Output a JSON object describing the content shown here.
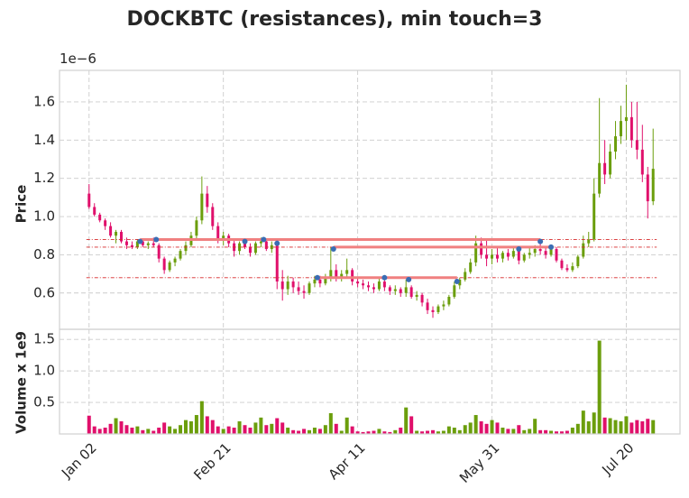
{
  "chart_data": {
    "type": "candlestick",
    "title": "DOCKBTC (resistances), min touch=3",
    "ylabel": "Price",
    "y_offset_label": "1e−6",
    "volume_ylabel": "Volume x 1e9",
    "x": [
      "Jan 02",
      "Jan 04",
      "Jan 06",
      "Jan 08",
      "Jan 10",
      "Jan 12",
      "Jan 14",
      "Jan 16",
      "Jan 18",
      "Jan 20",
      "Jan 22",
      "Jan 24",
      "Jan 26",
      "Jan 28",
      "Jan 30",
      "Feb 01",
      "Feb 03",
      "Feb 05",
      "Feb 07",
      "Feb 09",
      "Feb 11",
      "Feb 13",
      "Feb 15",
      "Feb 17",
      "Feb 19",
      "Feb 21",
      "Feb 23",
      "Feb 25",
      "Feb 27",
      "Feb 29",
      "Mar 02",
      "Mar 04",
      "Mar 06",
      "Mar 08",
      "Mar 10",
      "Mar 12",
      "Mar 14",
      "Mar 16",
      "Mar 18",
      "Mar 20",
      "Mar 22",
      "Mar 24",
      "Mar 26",
      "Mar 28",
      "Mar 30",
      "Apr 01",
      "Apr 03",
      "Apr 05",
      "Apr 07",
      "Apr 09",
      "Apr 11",
      "Apr 13",
      "Apr 15",
      "Apr 17",
      "Apr 19",
      "Apr 21",
      "Apr 23",
      "Apr 25",
      "Apr 27",
      "Apr 29",
      "May 01",
      "May 03",
      "May 05",
      "May 07",
      "May 09",
      "May 11",
      "May 13",
      "May 15",
      "May 17",
      "May 19",
      "May 21",
      "May 23",
      "May 25",
      "May 27",
      "May 29",
      "May 31",
      "Jun 02",
      "Jun 04",
      "Jun 06",
      "Jun 08",
      "Jun 10",
      "Jun 12",
      "Jun 14",
      "Jun 16",
      "Jun 18",
      "Jun 20",
      "Jun 22",
      "Jun 24",
      "Jun 26",
      "Jun 28",
      "Jun 30",
      "Jul 02",
      "Jul 04",
      "Jul 06",
      "Jul 08",
      "Jul 10",
      "Jul 12",
      "Jul 14",
      "Jul 16",
      "Jul 18",
      "Jul 20",
      "Jul 22",
      "Jul 24",
      "Jul 26",
      "Jul 28",
      "Jul 30"
    ],
    "open": [
      1.12,
      1.05,
      1.01,
      0.98,
      0.95,
      0.9,
      0.92,
      0.87,
      0.85,
      0.84,
      0.87,
      0.85,
      0.86,
      0.85,
      0.78,
      0.72,
      0.76,
      0.78,
      0.82,
      0.85,
      0.9,
      0.98,
      1.12,
      1.05,
      0.95,
      0.88,
      0.9,
      0.86,
      0.82,
      0.86,
      0.84,
      0.81,
      0.86,
      0.87,
      0.83,
      0.85,
      0.66,
      0.62,
      0.66,
      0.63,
      0.61,
      0.6,
      0.65,
      0.67,
      0.65,
      0.68,
      0.72,
      0.68,
      0.7,
      0.72,
      0.66,
      0.65,
      0.64,
      0.63,
      0.62,
      0.66,
      0.63,
      0.61,
      0.62,
      0.6,
      0.63,
      0.58,
      0.59,
      0.55,
      0.51,
      0.5,
      0.53,
      0.54,
      0.58,
      0.64,
      0.67,
      0.71,
      0.76,
      0.86,
      0.8,
      0.78,
      0.8,
      0.78,
      0.81,
      0.79,
      0.82,
      0.77,
      0.8,
      0.81,
      0.83,
      0.82,
      0.8,
      0.83,
      0.77,
      0.73,
      0.72,
      0.74,
      0.79,
      0.86,
      0.88,
      1.12,
      1.28,
      1.22,
      1.34,
      1.42,
      1.5,
      1.52,
      1.4,
      1.35,
      1.22,
      1.08
    ],
    "high": [
      1.17,
      1.07,
      1.02,
      0.99,
      0.97,
      0.93,
      0.93,
      0.89,
      0.87,
      0.88,
      0.88,
      0.87,
      0.89,
      0.86,
      0.79,
      0.77,
      0.79,
      0.83,
      0.87,
      0.92,
      1.0,
      1.21,
      1.16,
      1.07,
      0.97,
      0.92,
      0.91,
      0.88,
      0.87,
      0.88,
      0.86,
      0.87,
      0.89,
      0.88,
      0.87,
      0.87,
      0.72,
      0.69,
      0.68,
      0.66,
      0.64,
      0.66,
      0.69,
      0.69,
      0.7,
      0.84,
      0.75,
      0.72,
      0.78,
      0.73,
      0.68,
      0.67,
      0.66,
      0.65,
      0.68,
      0.68,
      0.64,
      0.64,
      0.63,
      0.67,
      0.64,
      0.61,
      0.6,
      0.57,
      0.53,
      0.54,
      0.56,
      0.59,
      0.66,
      0.68,
      0.73,
      0.78,
      0.9,
      0.89,
      0.88,
      0.83,
      0.84,
      0.82,
      0.83,
      0.84,
      0.84,
      0.81,
      0.84,
      0.85,
      0.88,
      0.84,
      0.85,
      0.84,
      0.78,
      0.75,
      0.76,
      0.8,
      0.9,
      0.92,
      1.2,
      1.62,
      1.4,
      1.38,
      1.5,
      1.58,
      1.69,
      1.6,
      1.6,
      1.48,
      1.26,
      1.46
    ],
    "low": [
      1.04,
      1.0,
      0.97,
      0.93,
      0.89,
      0.86,
      0.86,
      0.83,
      0.83,
      0.83,
      0.84,
      0.83,
      0.84,
      0.76,
      0.7,
      0.71,
      0.74,
      0.77,
      0.8,
      0.84,
      0.88,
      0.96,
      1.02,
      0.93,
      0.86,
      0.85,
      0.84,
      0.79,
      0.8,
      0.83,
      0.79,
      0.8,
      0.84,
      0.82,
      0.81,
      0.62,
      0.56,
      0.59,
      0.6,
      0.59,
      0.57,
      0.59,
      0.63,
      0.63,
      0.64,
      0.66,
      0.66,
      0.66,
      0.68,
      0.64,
      0.63,
      0.62,
      0.61,
      0.6,
      0.61,
      0.61,
      0.59,
      0.59,
      0.58,
      0.58,
      0.57,
      0.56,
      0.53,
      0.49,
      0.47,
      0.49,
      0.51,
      0.53,
      0.57,
      0.62,
      0.66,
      0.7,
      0.74,
      0.78,
      0.74,
      0.75,
      0.76,
      0.76,
      0.77,
      0.78,
      0.75,
      0.76,
      0.78,
      0.79,
      0.8,
      0.78,
      0.79,
      0.76,
      0.72,
      0.71,
      0.71,
      0.73,
      0.78,
      0.84,
      0.87,
      1.1,
      1.17,
      1.2,
      1.3,
      1.38,
      1.4,
      1.36,
      1.3,
      1.18,
      0.99,
      1.06
    ],
    "close": [
      1.05,
      1.01,
      0.98,
      0.95,
      0.9,
      0.92,
      0.87,
      0.85,
      0.84,
      0.87,
      0.85,
      0.86,
      0.85,
      0.78,
      0.72,
      0.76,
      0.78,
      0.82,
      0.85,
      0.9,
      0.98,
      1.12,
      1.05,
      0.95,
      0.88,
      0.9,
      0.86,
      0.82,
      0.86,
      0.84,
      0.81,
      0.86,
      0.87,
      0.83,
      0.85,
      0.66,
      0.62,
      0.66,
      0.63,
      0.61,
      0.6,
      0.65,
      0.67,
      0.65,
      0.68,
      0.72,
      0.68,
      0.7,
      0.72,
      0.66,
      0.65,
      0.64,
      0.63,
      0.62,
      0.66,
      0.63,
      0.61,
      0.62,
      0.6,
      0.63,
      0.58,
      0.59,
      0.55,
      0.51,
      0.5,
      0.53,
      0.54,
      0.58,
      0.64,
      0.67,
      0.71,
      0.76,
      0.86,
      0.8,
      0.78,
      0.8,
      0.78,
      0.81,
      0.79,
      0.82,
      0.77,
      0.8,
      0.81,
      0.83,
      0.82,
      0.8,
      0.83,
      0.77,
      0.73,
      0.72,
      0.74,
      0.79,
      0.86,
      0.88,
      1.12,
      1.28,
      1.22,
      1.34,
      1.42,
      1.5,
      1.52,
      1.4,
      1.35,
      1.22,
      1.08,
      1.25
    ],
    "volume": [
      0.29,
      0.12,
      0.08,
      0.1,
      0.16,
      0.25,
      0.2,
      0.14,
      0.1,
      0.12,
      0.06,
      0.08,
      0.05,
      0.1,
      0.18,
      0.12,
      0.08,
      0.14,
      0.22,
      0.2,
      0.3,
      0.52,
      0.28,
      0.22,
      0.12,
      0.08,
      0.12,
      0.1,
      0.2,
      0.14,
      0.1,
      0.18,
      0.26,
      0.14,
      0.16,
      0.25,
      0.18,
      0.1,
      0.06,
      0.05,
      0.08,
      0.06,
      0.1,
      0.08,
      0.14,
      0.33,
      0.16,
      0.05,
      0.26,
      0.12,
      0.04,
      0.03,
      0.04,
      0.05,
      0.08,
      0.04,
      0.03,
      0.06,
      0.1,
      0.42,
      0.28,
      0.05,
      0.04,
      0.05,
      0.06,
      0.04,
      0.05,
      0.12,
      0.1,
      0.06,
      0.14,
      0.18,
      0.3,
      0.2,
      0.16,
      0.22,
      0.18,
      0.1,
      0.08,
      0.08,
      0.14,
      0.06,
      0.08,
      0.24,
      0.06,
      0.06,
      0.05,
      0.04,
      0.04,
      0.05,
      0.1,
      0.16,
      0.37,
      0.2,
      0.34,
      1.48,
      0.26,
      0.25,
      0.22,
      0.2,
      0.28,
      0.18,
      0.22,
      0.2,
      0.24,
      0.22
    ],
    "up_color": "#6b9e0c",
    "down_color": "#e0106b",
    "xlim": [
      "Dec 22",
      "Aug 09"
    ],
    "xticks": [
      "Jan 02",
      "Feb 21",
      "Apr 11",
      "May 31",
      "Jul 20"
    ],
    "ylim": [
      0.41,
      1.765
    ],
    "yticks": [
      0.6,
      0.8,
      {
        "value": 1,
        "label": "1.0"
      },
      1.2,
      1.4,
      1.6
    ],
    "volume_ylim": [
      0,
      1.66
    ],
    "volume_yticks": [
      0.5,
      {
        "value": 1,
        "label": "1.0"
      },
      1.5
    ],
    "grid": true,
    "resistance_color": "#f08080",
    "extension_color": "#d62728",
    "touch_color": "#3a6db4",
    "resistances": [
      {
        "level": 0.88,
        "start": "Jan 21",
        "end": "Jun 18"
      },
      {
        "level": 0.84,
        "start": "Apr 02",
        "end": "Jun 22"
      },
      {
        "level": 0.68,
        "start": "Mar 27",
        "end": "May 18"
      }
    ],
    "touches": {
      "x": [
        "Jan 21",
        "Jan 27",
        "Feb 29",
        "Mar 07",
        "Mar 12",
        "Mar 27",
        "Apr 02",
        "Apr 21",
        "Apr 30",
        "May 18",
        "Jun 10",
        "Jun 18",
        "Jun 22"
      ],
      "y": [
        0.87,
        0.88,
        0.87,
        0.88,
        0.86,
        0.68,
        0.83,
        0.68,
        0.67,
        0.66,
        0.83,
        0.87,
        0.84
      ]
    }
  }
}
